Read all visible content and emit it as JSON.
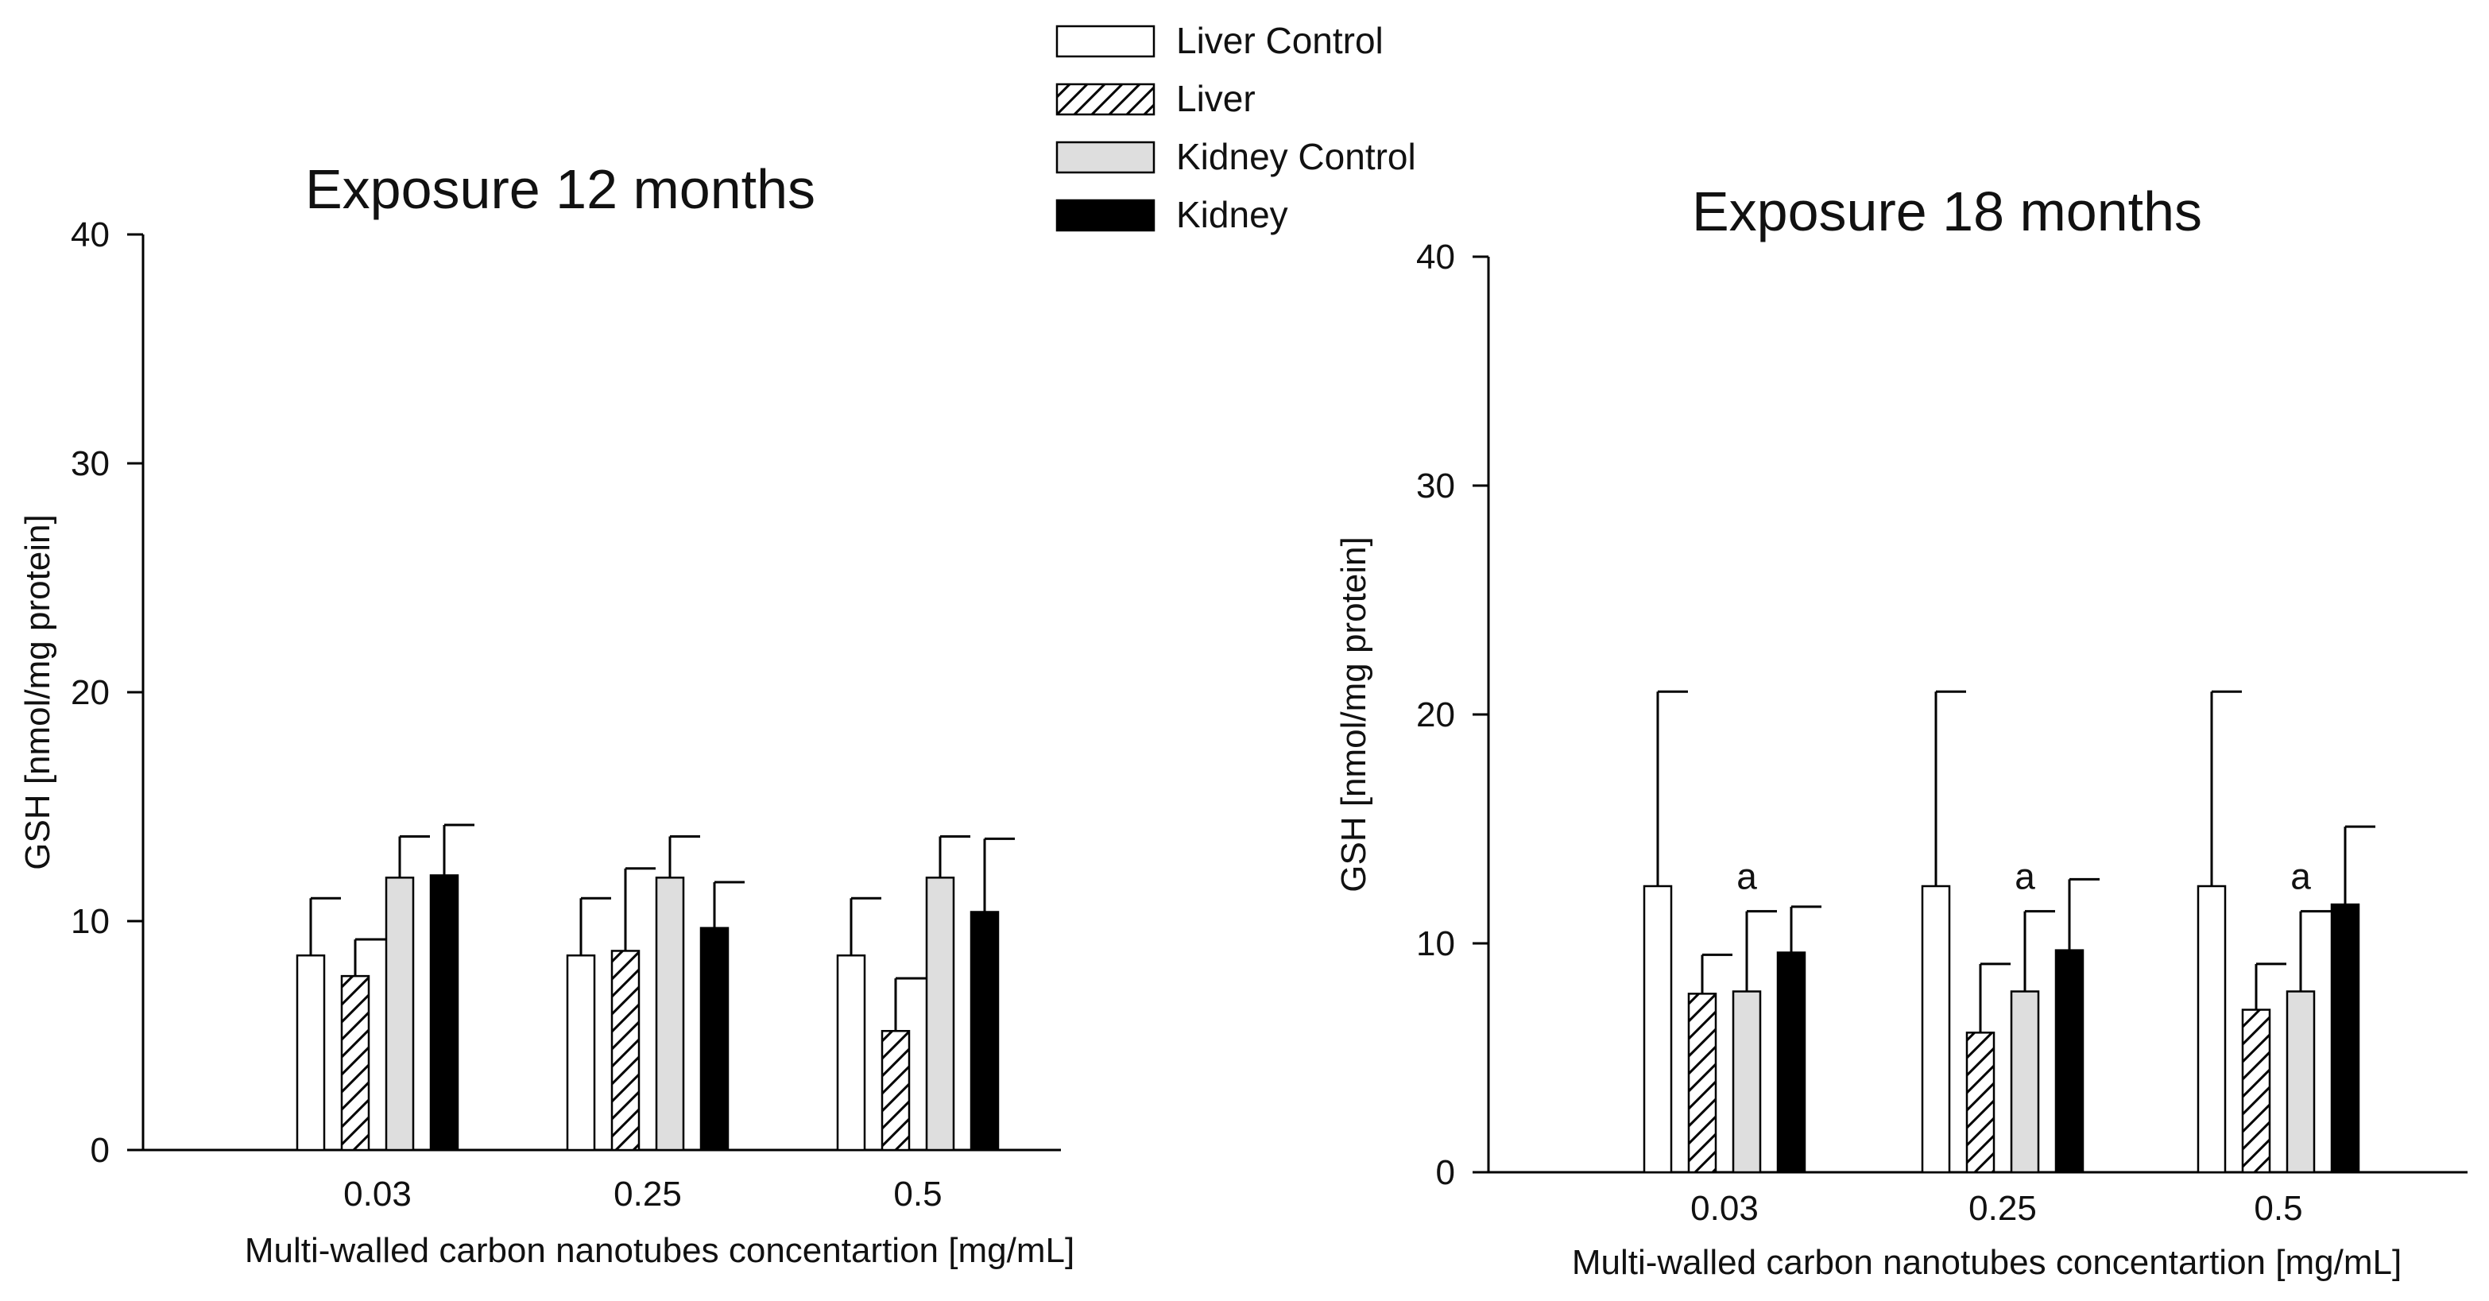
{
  "legend": [
    {
      "label": "Liver Control",
      "style": "white"
    },
    {
      "label": "Liver",
      "style": "hatched"
    },
    {
      "label": "Kidney Control",
      "style": "gray"
    },
    {
      "label": "Kidney",
      "style": "black"
    }
  ],
  "colors": {
    "white": "#ffffff",
    "gray": "#dedede",
    "black": "#000000",
    "stroke": "#000000"
  },
  "chart_data": [
    {
      "type": "bar",
      "title": "Exposure 12 months",
      "xlabel": "Multi-walled carbon nanotubes concentartion [mg/mL]",
      "ylabel": "GSH [nmol/mg protein]",
      "ylim": [
        0,
        40
      ],
      "yticks": [
        "0",
        "10",
        "20",
        "30",
        "40"
      ],
      "categories": [
        "0.03",
        "0.25",
        "0.5"
      ],
      "series": [
        {
          "name": "Liver Control",
          "values": [
            8.5,
            8.5,
            8.5
          ],
          "errors": [
            2.5,
            2.5,
            2.5
          ]
        },
        {
          "name": "Liver",
          "values": [
            7.6,
            8.7,
            5.2
          ],
          "errors": [
            1.6,
            3.6,
            2.3
          ]
        },
        {
          "name": "Kidney Control",
          "values": [
            11.9,
            11.9,
            11.9
          ],
          "errors": [
            1.8,
            1.8,
            1.8
          ]
        },
        {
          "name": "Kidney",
          "values": [
            12.0,
            9.7,
            10.4
          ],
          "errors": [
            2.2,
            2.0,
            3.2
          ]
        }
      ],
      "annotations": []
    },
    {
      "type": "bar",
      "title": "Exposure 18 months",
      "xlabel": "Multi-walled carbon nanotubes concentartion [mg/mL]",
      "ylabel": "GSH [nmol/mg protein]",
      "ylim": [
        0,
        40
      ],
      "yticks": [
        "0",
        "10",
        "20",
        "30",
        "40"
      ],
      "categories": [
        "0.03",
        "0.25",
        "0.5"
      ],
      "series": [
        {
          "name": "Liver Control",
          "values": [
            12.5,
            12.5,
            12.5
          ],
          "errors": [
            8.5,
            8.5,
            8.5
          ]
        },
        {
          "name": "Liver",
          "values": [
            7.8,
            6.1,
            7.1
          ],
          "errors": [
            1.7,
            3.0,
            2.0
          ]
        },
        {
          "name": "Kidney Control",
          "values": [
            7.9,
            7.9,
            7.9
          ],
          "errors": [
            3.5,
            3.5,
            3.5
          ]
        },
        {
          "name": "Kidney",
          "values": [
            9.6,
            9.7,
            11.7
          ],
          "errors": [
            2.0,
            3.1,
            3.4
          ]
        }
      ],
      "annotations": [
        {
          "category": "0.03",
          "series": "Kidney Control",
          "text": "a"
        },
        {
          "category": "0.25",
          "series": "Kidney Control",
          "text": "a"
        },
        {
          "category": "0.5",
          "series": "Kidney Control",
          "text": "a"
        }
      ]
    }
  ]
}
